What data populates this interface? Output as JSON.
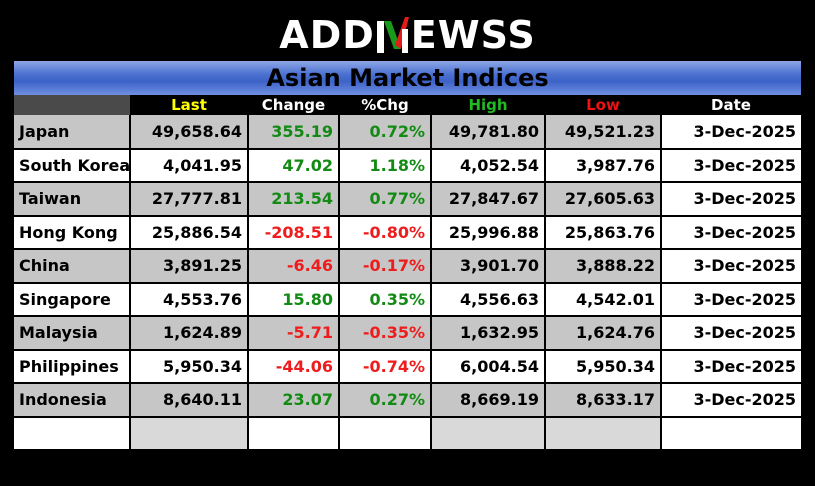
{
  "logo": {
    "left": "ADD",
    "right": "EWSS"
  },
  "title": "Asian Market Indices",
  "columns": {
    "last": "Last",
    "change": "Change",
    "pchg": "%Chg",
    "high": "High",
    "low": "Low",
    "date": "Date"
  },
  "colors": {
    "last_header": "#ffff00",
    "change_header": "#ffffff",
    "pchg_header": "#ffffff",
    "high_header": "#22bb22",
    "low_header": "#ee1111",
    "date_header": "#ffffff",
    "positive": "#138a13",
    "negative": "#ee1c1c",
    "banner": "#4a6fd0"
  },
  "rows": [
    {
      "country": "Japan",
      "last": "49,658.64",
      "change": "355.19",
      "pchg": "0.72%",
      "high": "49,781.80",
      "low": "49,521.23",
      "date": "3-Dec-2025"
    },
    {
      "country": "South Korea",
      "last": "4,041.95",
      "change": "47.02",
      "pchg": "1.18%",
      "high": "4,052.54",
      "low": "3,987.76",
      "date": "3-Dec-2025"
    },
    {
      "country": "Taiwan",
      "last": "27,777.81",
      "change": "213.54",
      "pchg": "0.77%",
      "high": "27,847.67",
      "low": "27,605.63",
      "date": "3-Dec-2025"
    },
    {
      "country": "Hong Kong",
      "last": "25,886.54",
      "change": "-208.51",
      "pchg": "-0.80%",
      "high": "25,996.88",
      "low": "25,863.76",
      "date": "3-Dec-2025"
    },
    {
      "country": "China",
      "last": "3,891.25",
      "change": "-6.46",
      "pchg": "-0.17%",
      "high": "3,901.70",
      "low": "3,888.22",
      "date": "3-Dec-2025"
    },
    {
      "country": "Singapore",
      "last": "4,553.76",
      "change": "15.80",
      "pchg": "0.35%",
      "high": "4,556.63",
      "low": "4,542.01",
      "date": "3-Dec-2025"
    },
    {
      "country": "Malaysia",
      "last": "1,624.89",
      "change": "-5.71",
      "pchg": "-0.35%",
      "high": "1,632.95",
      "low": "1,624.76",
      "date": "3-Dec-2025"
    },
    {
      "country": "Philippines",
      "last": "5,950.34",
      "change": "-44.06",
      "pchg": "-0.74%",
      "high": "6,004.54",
      "low": "5,950.34",
      "date": "3-Dec-2025"
    },
    {
      "country": "Indonesia",
      "last": "8,640.11",
      "change": "23.07",
      "pchg": "0.27%",
      "high": "8,669.19",
      "low": "8,633.17",
      "date": "3-Dec-2025"
    }
  ]
}
